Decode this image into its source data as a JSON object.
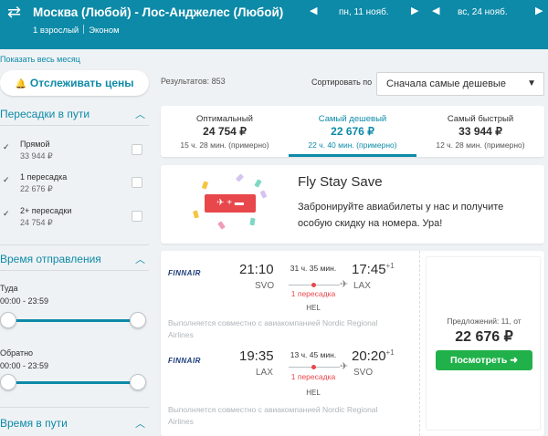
{
  "header": {
    "route": "Москва (Любой) - Лос-Анджелес (Любой)",
    "passengers": "1 взрослый",
    "cabin": "Эконом",
    "depart_date": "пн, 11 нояб.",
    "return_date": "вс, 24 нояб.",
    "prev_arrow": "◀",
    "next_arrow": "▶"
  },
  "sidebar": {
    "show_month": "Показать весь месяц",
    "track_button": "Отслеживать цены",
    "stops_title": "Пересадки в пути",
    "stops": [
      {
        "label": "Прямой",
        "price": "33 944 ₽"
      },
      {
        "label": "1 пересадка",
        "price": "22 676 ₽"
      },
      {
        "label": "2+ пересадки",
        "price": "24 754 ₽"
      }
    ],
    "departure_title": "Время отправления",
    "outbound_label": "Туда",
    "outbound_range": "00:00 - 23:59",
    "return_label": "Обратно",
    "return_range": "00:00 - 23:59",
    "duration_title": "Время в пути"
  },
  "results": {
    "count_text": "Результатов: 853",
    "sort_label": "Сортировать по",
    "sort_value": "Сначала самые дешевые"
  },
  "tabs": [
    {
      "title": "Оптимальный",
      "price": "24 754 ₽",
      "sub": "15 ч. 28 мин. (примерно)"
    },
    {
      "title": "Самый дешевый",
      "price": "22 676 ₽",
      "sub": "22 ч. 40 мин. (примерно)"
    },
    {
      "title": "Самый быстрый",
      "price": "33 944 ₽",
      "sub": "12 ч. 28 мин. (примерно)"
    }
  ],
  "promo": {
    "badge": "✈ + ▬",
    "title": "Fly Stay Save",
    "text": "Забронируйте авиабилеты у нас и получите особую скидку на номера. Ура!"
  },
  "ticket": {
    "legs": [
      {
        "airline": "FINNAIR",
        "dep_time": "21:10",
        "dep_code": "SVO",
        "duration": "31 ч. 35 мин.",
        "transfer": "1 пересадка",
        "hub": "HEL",
        "arr_time": "17:45",
        "arr_plus": "+1",
        "arr_code": "LAX",
        "operated": "Выполняется совместно с авиакомпанией Nordic Regional Airlines"
      },
      {
        "airline": "FINNAIR",
        "dep_time": "19:35",
        "dep_code": "LAX",
        "duration": "13 ч. 45 мин.",
        "transfer": "1 пересадка",
        "hub": "HEL",
        "arr_time": "20:20",
        "arr_plus": "+1",
        "arr_code": "SVO",
        "operated": "Выполняется совместно с авиакомпанией Nordic Regional Airlines"
      }
    ],
    "offers": "Предложений: 11, от",
    "price": "22 676 ₽",
    "buy_button": "Посмотреть ➜"
  },
  "colors": {
    "brand": "#0d8aa8",
    "accent_green": "#21b14a",
    "transfer_red": "#e8474b"
  }
}
